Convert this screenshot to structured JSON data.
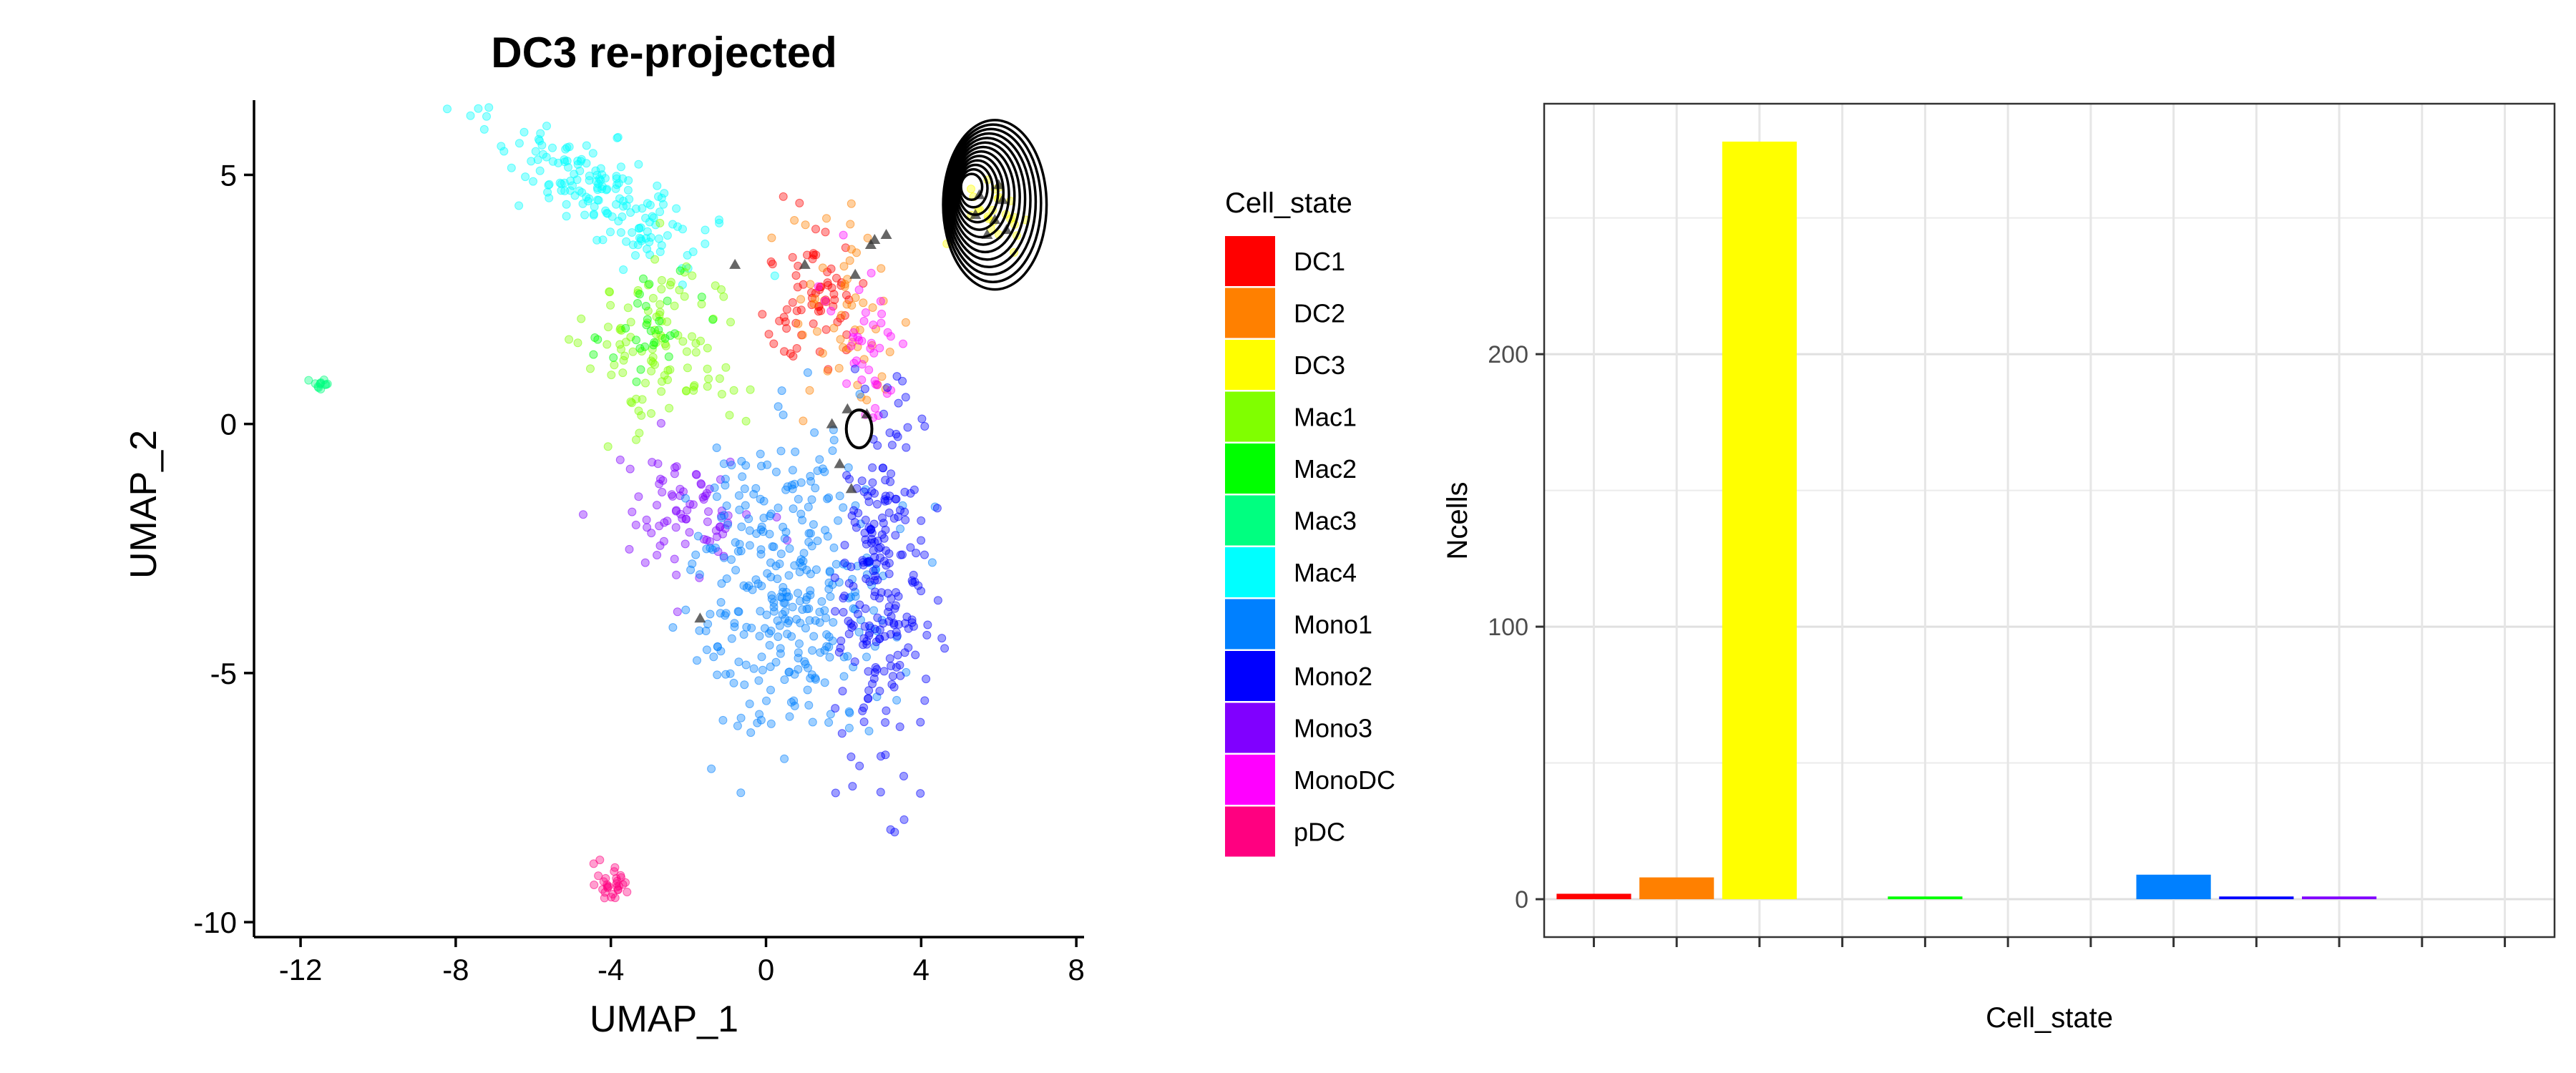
{
  "chart_data": [
    {
      "type": "scatter",
      "title": "DC3 re-projected",
      "xlabel": "UMAP_1",
      "ylabel": "UMAP_2",
      "xlim": [
        -13.2,
        8.2
      ],
      "ylim": [
        -10.3,
        6.5
      ],
      "xticks": [
        -12,
        -8,
        -4,
        0,
        4,
        8
      ],
      "xtick_labels": [
        "-12",
        "-8",
        "-4",
        "0",
        "4",
        "8"
      ],
      "yticks": [
        -10,
        -5,
        0,
        5
      ],
      "ytick_labels": [
        "-10",
        "-5",
        "0",
        "5"
      ],
      "grid": false,
      "legend_title": "Cell_state",
      "legend_position": "right",
      "legend_entries": [
        "DC1",
        "DC2",
        "DC3",
        "Mac1",
        "Mac2",
        "Mac3",
        "Mac4",
        "Mono1",
        "Mono2",
        "Mono3",
        "MonoDC",
        "pDC"
      ],
      "colors": {
        "DC1": "#FF0000",
        "DC2": "#FF8000",
        "DC3": "#FFFF00",
        "Mac1": "#80FF00",
        "Mac2": "#00FF00",
        "Mac3": "#00FF80",
        "Mac4": "#00FFFF",
        "Mono1": "#0080FF",
        "Mono2": "#0000FF",
        "Mono3": "#8000FF",
        "MonoDC": "#FF00FF",
        "pDC": "#FF0080"
      },
      "clusters": [
        {
          "name": "Mac4",
          "center": [
            -4.3,
            4.7
          ],
          "spread": [
            1.5,
            0.45
          ],
          "n": 170,
          "rotation": -25
        },
        {
          "name": "Mac1",
          "center": [
            -2.6,
            1.6
          ],
          "spread": [
            1.0,
            0.9
          ],
          "n": 110,
          "rotation": 0
        },
        {
          "name": "Mac2",
          "center": [
            -2.9,
            1.9
          ],
          "spread": [
            0.6,
            0.6
          ],
          "n": 30,
          "rotation": 0
        },
        {
          "name": "Mac3",
          "center": [
            -11.5,
            0.8
          ],
          "spread": [
            0.12,
            0.1
          ],
          "n": 12,
          "rotation": 0
        },
        {
          "name": "DC1",
          "center": [
            1.2,
            2.6
          ],
          "spread": [
            0.7,
            0.7
          ],
          "n": 70,
          "rotation": 0
        },
        {
          "name": "DC2",
          "center": [
            2.2,
            2.0
          ],
          "spread": [
            0.8,
            1.1
          ],
          "n": 55,
          "rotation": 0
        },
        {
          "name": "MonoDC",
          "center": [
            2.7,
            1.8
          ],
          "spread": [
            0.5,
            0.9
          ],
          "n": 40,
          "rotation": 0
        },
        {
          "name": "Mono3",
          "center": [
            -2.1,
            -1.8
          ],
          "spread": [
            0.9,
            0.6
          ],
          "n": 80,
          "rotation": 0
        },
        {
          "name": "Mono1",
          "center": [
            0.6,
            -3.2
          ],
          "spread": [
            1.3,
            1.5
          ],
          "n": 330,
          "rotation": 0
        },
        {
          "name": "Mono2",
          "center": [
            3.0,
            -3.3
          ],
          "spread": [
            0.55,
            1.8
          ],
          "n": 230,
          "rotation": 0
        },
        {
          "name": "pDC",
          "center": [
            -4.0,
            -9.2
          ],
          "spread": [
            0.2,
            0.22
          ],
          "n": 30,
          "rotation": 0
        },
        {
          "name": "DC3",
          "center": [
            5.9,
            4.3
          ],
          "spread": [
            0.5,
            0.4
          ],
          "n": 25,
          "rotation": 0
        }
      ],
      "projected_points": [
        [
          5.5,
          4.6
        ],
        [
          5.9,
          4.1
        ],
        [
          6.1,
          4.5
        ],
        [
          5.7,
          3.8
        ],
        [
          6.2,
          3.9
        ],
        [
          5.4,
          4.2
        ],
        [
          6.0,
          4.8
        ],
        [
          2.7,
          3.6
        ],
        [
          2.8,
          3.7
        ],
        [
          3.1,
          3.8
        ],
        [
          2.3,
          3.0
        ],
        [
          1.0,
          3.2
        ],
        [
          -0.8,
          3.2
        ],
        [
          1.7,
          0.0
        ],
        [
          2.1,
          0.3
        ],
        [
          2.6,
          0.2
        ],
        [
          1.9,
          -0.8
        ],
        [
          2.2,
          -1.3
        ],
        [
          -1.7,
          -3.9
        ]
      ],
      "density_contours": {
        "center": [
          5.9,
          4.4
        ],
        "radii": [
          [
            1.7,
            2.15
          ],
          [
            1.58,
            2.0
          ],
          [
            1.46,
            1.86
          ],
          [
            1.34,
            1.72
          ],
          [
            1.22,
            1.58
          ],
          [
            1.1,
            1.44
          ],
          [
            0.98,
            1.3
          ],
          [
            0.86,
            1.15
          ],
          [
            0.74,
            1.0
          ],
          [
            0.62,
            0.86
          ],
          [
            0.5,
            0.72
          ],
          [
            0.38,
            0.58
          ],
          [
            0.26,
            0.44
          ]
        ],
        "small_contour": {
          "center": [
            2.4,
            -0.1
          ],
          "radii": [
            0.33,
            0.38
          ]
        }
      }
    },
    {
      "type": "bar",
      "xlabel": "Cell_state",
      "ylabel": "Ncells",
      "categories": [
        "DC1",
        "DC2",
        "DC3",
        "Mac1",
        "Mac2",
        "Mac3",
        "Mac4",
        "Mono1",
        "Mono2",
        "Mono3",
        "MonoDC",
        "pDC"
      ],
      "values": [
        2,
        8,
        278,
        0,
        1,
        0,
        0,
        9,
        1,
        1,
        0,
        0
      ],
      "colors": [
        "#FF0000",
        "#FF8000",
        "#FFFF00",
        "#80FF00",
        "#00FF00",
        "#00FF80",
        "#00FFFF",
        "#0080FF",
        "#0000FF",
        "#8000FF",
        "#FF00FF",
        "#FF0080"
      ],
      "ylim": [
        -13.9,
        291.9
      ],
      "yticks": [
        0,
        100,
        200
      ],
      "ytick_labels": [
        "0",
        "100",
        "200"
      ],
      "grid": true,
      "show_x_tick_labels": false
    }
  ]
}
